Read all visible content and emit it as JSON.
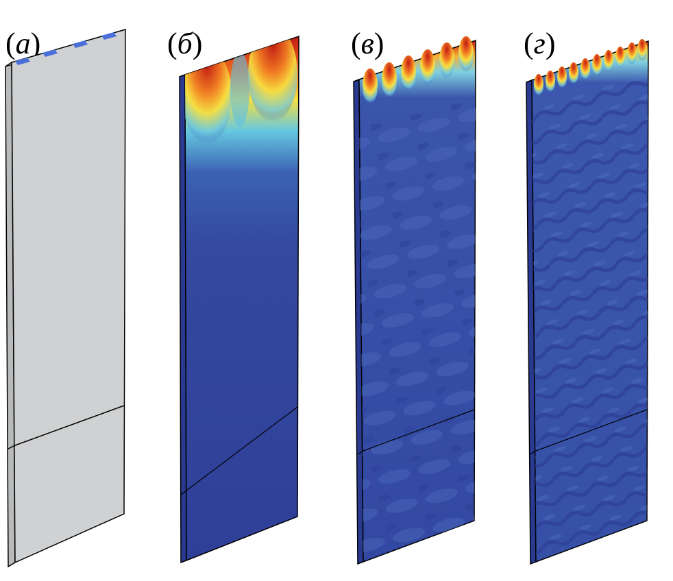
{
  "panels": [
    {
      "label_open": "(",
      "label_letter": "а",
      "label_close": ")",
      "field": "none"
    },
    {
      "label_open": "(",
      "label_letter": "б",
      "label_close": ")",
      "field": "low"
    },
    {
      "label_open": "(",
      "label_letter": "в",
      "label_close": ")",
      "field": "mid"
    },
    {
      "label_open": "(",
      "label_letter": "г",
      "label_close": ")",
      "field": "high"
    }
  ],
  "colors": {
    "plate_gray": "#d0d1d2",
    "field_blue": "#31409a",
    "field_red": "#c8201a",
    "field_yellow": "#f4e843",
    "field_cyan": "#5fc6e9",
    "electrode_blue": "#4a6fd8"
  }
}
